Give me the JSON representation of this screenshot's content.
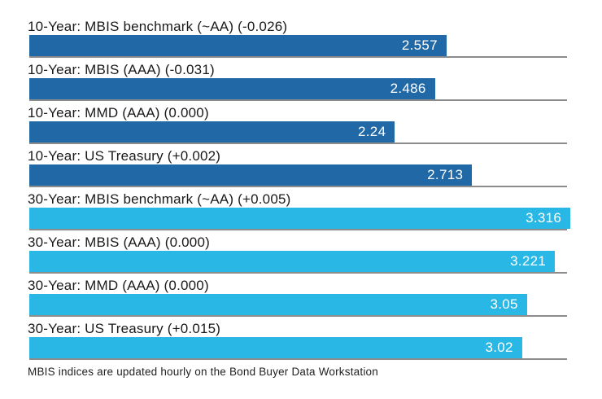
{
  "chart_data": {
    "type": "bar",
    "orientation": "horizontal",
    "title": "",
    "xlabel": "",
    "ylabel": "",
    "xlim": [
      0,
      3.35
    ],
    "grid": false,
    "legend": "none",
    "rows": [
      {
        "label": "10-Year: MBIS benchmark (~AA) (-0.026)",
        "value": 2.557,
        "display": "2.557",
        "group": "10-year"
      },
      {
        "label": "10-Year: MBIS (AAA) (-0.031)",
        "value": 2.486,
        "display": "2.486",
        "group": "10-year"
      },
      {
        "label": "10-Year: MMD (AAA) (0.000)",
        "value": 2.24,
        "display": "2.24",
        "group": "10-year"
      },
      {
        "label": "10-Year: US Treasury (+0.002)",
        "value": 2.713,
        "display": "2.713",
        "group": "10-year"
      },
      {
        "label": "30-Year: MBIS benchmark (~AA) (+0.005)",
        "value": 3.316,
        "display": "3.316",
        "group": "30-year"
      },
      {
        "label": "30-Year: MBIS (AAA) (0.000)",
        "value": 3.221,
        "display": "3.221",
        "group": "30-year"
      },
      {
        "label": "30-Year: MMD (AAA) (0.000)",
        "value": 3.05,
        "display": "3.05",
        "group": "30-year"
      },
      {
        "label": "30-Year: US Treasury (+0.015)",
        "value": 3.02,
        "display": "3.02",
        "group": "30-year"
      }
    ],
    "footnote": "MBIS indices are updated hourly on the Bond Buyer Data Workstation"
  },
  "colors": {
    "bar_10_year": "#2069a6",
    "bar_30_year": "#29b8e6",
    "separator": "#8c8c8c",
    "value_text": "#ffffff",
    "label_text": "#1a1a1a"
  }
}
